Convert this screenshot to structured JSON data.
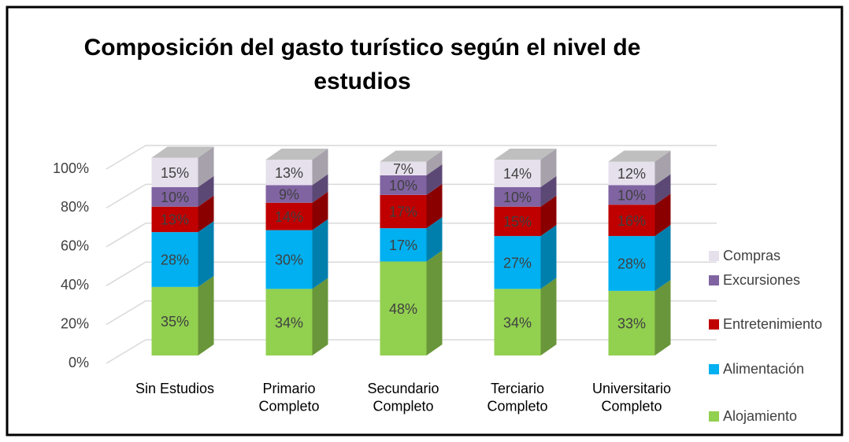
{
  "chart_data": {
    "type": "bar3d_stacked",
    "title": "Composición del gasto turístico según el nivel de estudios",
    "categories": [
      "Sin Estudios",
      "Primario\nCompleto",
      "Secundario\nCompleto",
      "Terciario\nCompleto",
      "Universitario\nCompleto"
    ],
    "series": [
      {
        "name": "Alojamiento",
        "color": "#92d050",
        "values": [
          35,
          34,
          48,
          34,
          33
        ],
        "value_labels": [
          "35%",
          "34%",
          "48%",
          "34%",
          "33%"
        ]
      },
      {
        "name": "Alimentación",
        "color": "#00b0f0",
        "values": [
          28,
          30,
          17,
          27,
          28
        ],
        "value_labels": [
          "28%",
          "30%",
          "17%",
          "27%",
          "28%"
        ]
      },
      {
        "name": "Entretenimiento",
        "color": "#c00000",
        "values": [
          13,
          14,
          17,
          15,
          16
        ],
        "value_labels": [
          "13%",
          "14%",
          "17%",
          "15%",
          "16%"
        ]
      },
      {
        "name": "Excursiones",
        "color": "#8064a2",
        "values": [
          10,
          9,
          10,
          10,
          10
        ],
        "value_labels": [
          "10%",
          "9%",
          "10%",
          "10%",
          "10%"
        ]
      },
      {
        "name": "Compras",
        "color": "#e6e0ec",
        "values": [
          15,
          13,
          7,
          14,
          12
        ],
        "value_labels": [
          "15%",
          "13%",
          "7%",
          "14%",
          "12%"
        ]
      }
    ],
    "ylim": [
      0,
      100
    ],
    "yticks": [
      {
        "value": 0,
        "label": "0%"
      },
      {
        "value": 20,
        "label": "20%"
      },
      {
        "value": 40,
        "label": "40%"
      },
      {
        "value": 60,
        "label": "60%"
      },
      {
        "value": 80,
        "label": "80%"
      },
      {
        "value": 100,
        "label": "100%"
      }
    ],
    "grid": true
  }
}
